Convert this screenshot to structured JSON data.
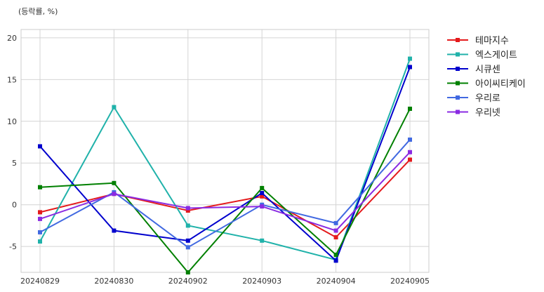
{
  "chart_data": {
    "type": "line",
    "unit_label": "(등락률, %)",
    "categories": [
      "20240829",
      "20240830",
      "20240902",
      "20240903",
      "20240904",
      "20240905"
    ],
    "ylim": [
      -8.1,
      21
    ],
    "yticks": [
      -5,
      0,
      5,
      10,
      15,
      20
    ],
    "grid": true,
    "legend_position": "outside-right-top",
    "series": [
      {
        "name": "테마지수",
        "color": "#e41a1c",
        "values": [
          -0.9,
          1.3,
          -0.7,
          1.0,
          -3.9,
          5.4
        ]
      },
      {
        "name": "엑스게이트",
        "color": "#20b2aa",
        "values": [
          -4.4,
          11.7,
          -2.5,
          -4.3,
          -6.6,
          17.5
        ]
      },
      {
        "name": "시큐센",
        "color": "#0000cd",
        "values": [
          7.0,
          -3.1,
          -4.3,
          1.4,
          -6.7,
          16.5
        ]
      },
      {
        "name": "아이씨티케이",
        "color": "#008000",
        "values": [
          2.1,
          2.6,
          -8.1,
          2.0,
          -6.0,
          11.5
        ]
      },
      {
        "name": "우리로",
        "color": "#4169e1",
        "values": [
          -3.3,
          1.5,
          -5.1,
          0.0,
          -2.2,
          7.8
        ]
      },
      {
        "name": "우리넷",
        "color": "#8a2be2",
        "values": [
          -1.7,
          1.3,
          -0.4,
          -0.2,
          -3.1,
          6.3
        ]
      }
    ]
  }
}
